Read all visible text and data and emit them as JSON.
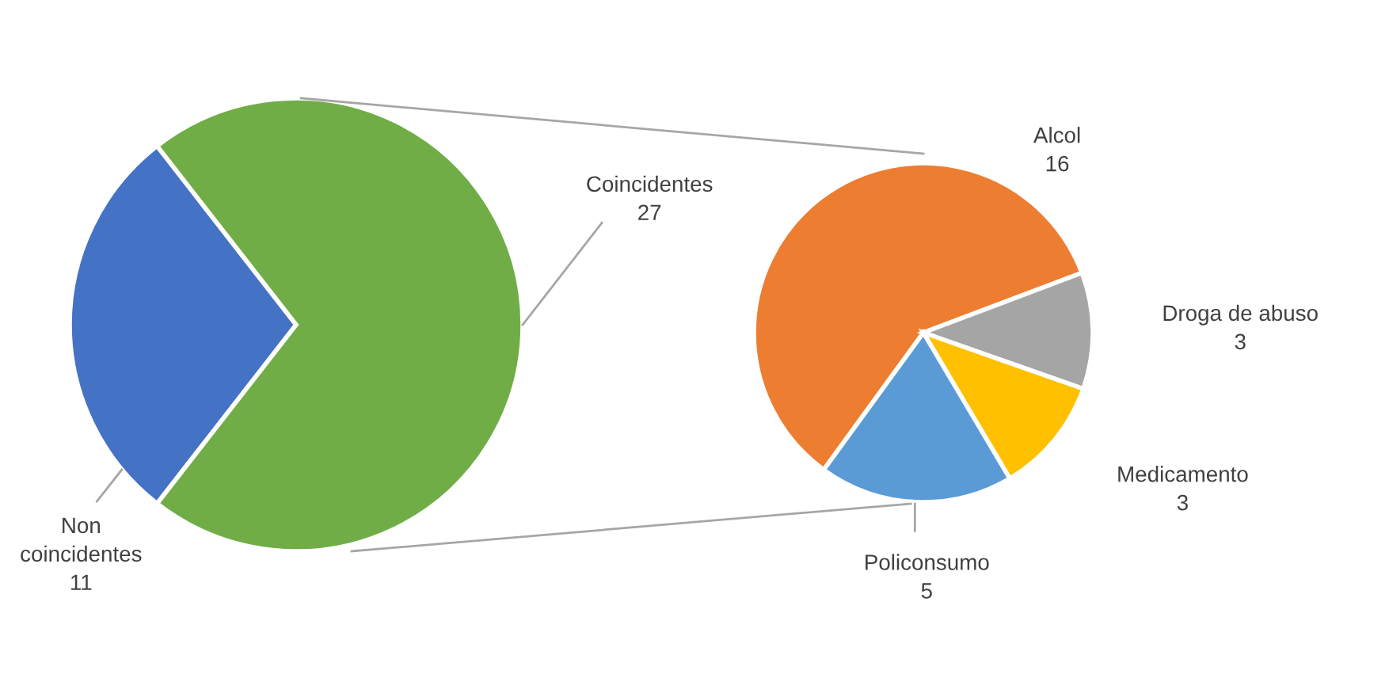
{
  "chart_data": [
    {
      "type": "pie",
      "categories": [
        "Non coincidentes",
        "Coincidentes"
      ],
      "values": [
        11,
        27
      ],
      "colors": [
        "#4472c4",
        "#70ad47"
      ],
      "data_labels": true
    },
    {
      "type": "pie",
      "categories": [
        "Alcol",
        "Droga de abuso",
        "Medicamento",
        "Policonsumo"
      ],
      "values": [
        16,
        3,
        3,
        5
      ],
      "colors": [
        "#ed7d31",
        "#a5a5a5",
        "#ffc000",
        "#5b9bd5"
      ],
      "data_labels": true
    }
  ]
}
